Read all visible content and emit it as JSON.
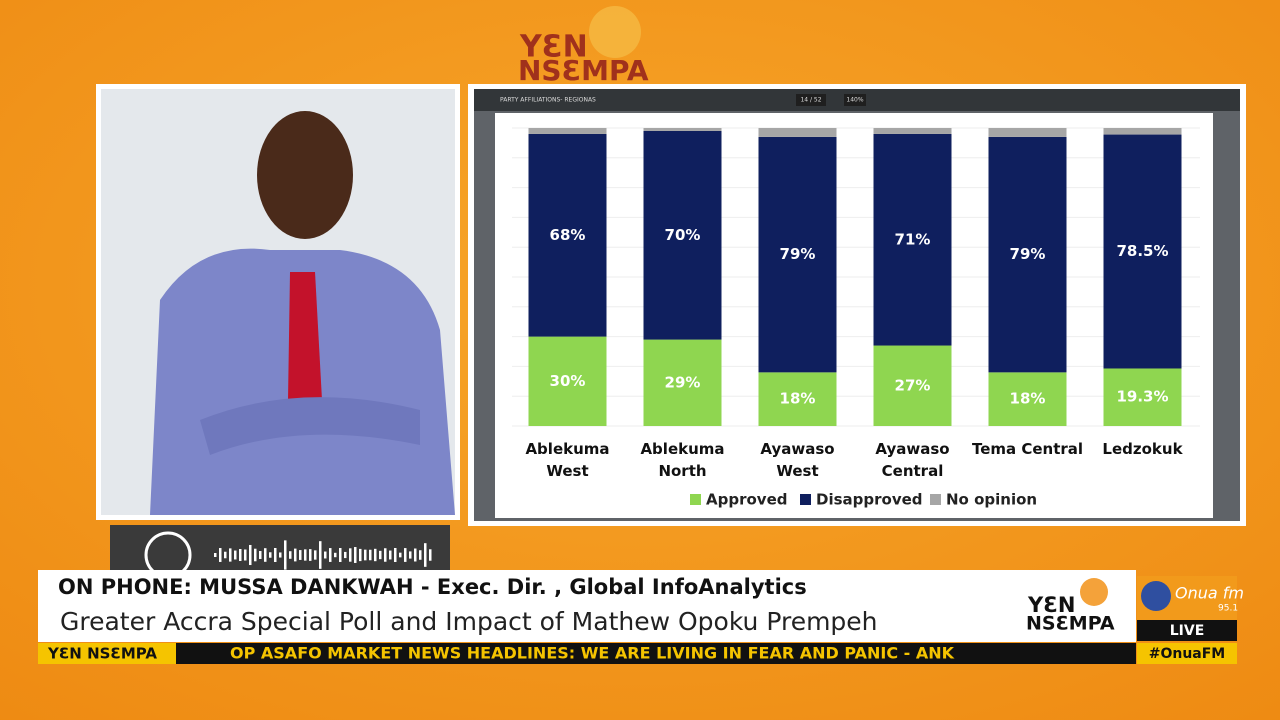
{
  "header": {
    "logo_lines": [
      "YƐN",
      "NSƐMPA"
    ]
  },
  "viewer": {
    "title": "PARTY AFFILIATIONS- REGIONAS",
    "page": "14 / 52",
    "zoom": "140%"
  },
  "chart_data": {
    "type": "stacked-bar",
    "categories": [
      "Ablekuma\nWest",
      "Ablekuma\nNorth",
      "Ayawaso West",
      "Ayawaso\nCentral",
      "Tema Central",
      "Ledzokuk"
    ],
    "ylim": [
      0,
      100
    ],
    "series": [
      {
        "name": "Approved",
        "color": "#8fd650",
        "values": [
          30,
          29,
          18,
          27,
          18,
          19.3
        ],
        "value_labels": [
          "30%",
          "29%",
          "18%",
          "27%",
          "18%",
          "19.3%"
        ]
      },
      {
        "name": "Disapproved",
        "color": "#0f1f5e",
        "values": [
          68,
          70,
          79,
          71,
          79,
          78.5
        ],
        "value_labels": [
          "68%",
          "70%",
          "79%",
          "71%",
          "79%",
          "78.5%"
        ]
      },
      {
        "name": "No opinion",
        "color": "#a6a6a6",
        "values": [
          2,
          1,
          3,
          2,
          3,
          2.2
        ]
      }
    ]
  },
  "lower_third": {
    "headline": "ON PHONE: MUSSA DANKWAH - Exec. Dir. , Global InfoAnalytics",
    "subtitle": "Greater Accra Special Poll and Impact of Mathew Opoku Prempeh",
    "ticker_label": "YƐN NSƐMPA",
    "ticker": "OP ASAFO MARKET  NEWS HEADLINES: WE ARE LIVING IN FEAR AND PANIC - ANK",
    "logo_lines": [
      "YƐN",
      "NSƐMPA"
    ],
    "station": "Onua fm",
    "frequency": "95.1",
    "live": "LIVE",
    "hashtag": "#OnuaFM"
  }
}
